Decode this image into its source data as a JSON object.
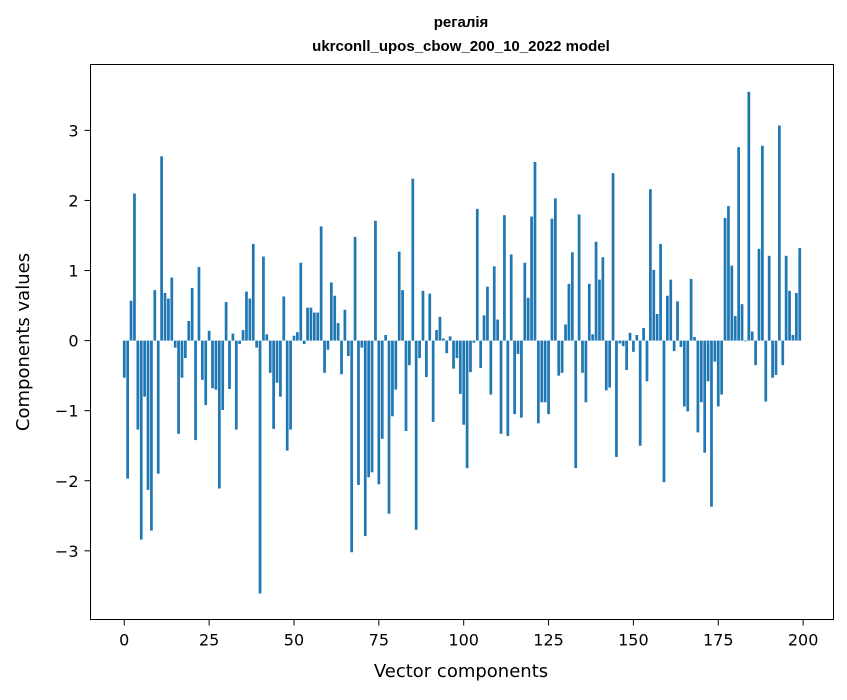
{
  "chart_data": {
    "type": "bar",
    "title_line1": "регалія",
    "title_line2": "ukrconll_upos_cbow_200_10_2022 model",
    "xlabel": "Vector components",
    "ylabel": "Components values",
    "xlim": [
      -9.95,
      208.95
    ],
    "ylim": [
      -3.98,
      3.94
    ],
    "xticks": [
      0,
      25,
      50,
      75,
      100,
      125,
      150,
      175,
      200
    ],
    "yticks": [
      -3,
      -2,
      -1,
      0,
      1,
      2,
      3
    ],
    "ytick_labels": [
      "−3",
      "−2",
      "−1",
      "0",
      "1",
      "2",
      "3"
    ],
    "bar_color": "#1f77b4",
    "grid": false,
    "legend": "none",
    "x": [
      0,
      1,
      2,
      3,
      4,
      5,
      6,
      7,
      8,
      9,
      10,
      11,
      12,
      13,
      14,
      15,
      16,
      17,
      18,
      19,
      20,
      21,
      22,
      23,
      24,
      25,
      26,
      27,
      28,
      29,
      30,
      31,
      32,
      33,
      34,
      35,
      36,
      37,
      38,
      39,
      40,
      41,
      42,
      43,
      44,
      45,
      46,
      47,
      48,
      49,
      50,
      51,
      52,
      53,
      54,
      55,
      56,
      57,
      58,
      59,
      60,
      61,
      62,
      63,
      64,
      65,
      66,
      67,
      68,
      69,
      70,
      71,
      72,
      73,
      74,
      75,
      76,
      77,
      78,
      79,
      80,
      81,
      82,
      83,
      84,
      85,
      86,
      87,
      88,
      89,
      90,
      91,
      92,
      93,
      94,
      95,
      96,
      97,
      98,
      99,
      100,
      101,
      102,
      103,
      104,
      105,
      106,
      107,
      108,
      109,
      110,
      111,
      112,
      113,
      114,
      115,
      116,
      117,
      118,
      119,
      120,
      121,
      122,
      123,
      124,
      125,
      126,
      127,
      128,
      129,
      130,
      131,
      132,
      133,
      134,
      135,
      136,
      137,
      138,
      139,
      140,
      141,
      142,
      143,
      144,
      145,
      146,
      147,
      148,
      149,
      150,
      151,
      152,
      153,
      154,
      155,
      156,
      157,
      158,
      159,
      160,
      161,
      162,
      163,
      164,
      165,
      166,
      167,
      168,
      169,
      170,
      171,
      172,
      173,
      174,
      175,
      176,
      177,
      178,
      179,
      180,
      181,
      182,
      183,
      184,
      185,
      186,
      187,
      188,
      189,
      190,
      191,
      192,
      193,
      194,
      195,
      196,
      197,
      198,
      199
    ],
    "values": [
      -0.53,
      -1.97,
      0.57,
      2.1,
      -1.27,
      -2.84,
      -0.8,
      -2.13,
      -2.71,
      0.72,
      -1.9,
      2.63,
      0.68,
      0.6,
      0.9,
      -0.1,
      -1.33,
      -0.53,
      -0.25,
      0.28,
      0.75,
      -1.42,
      1.05,
      -0.56,
      -0.92,
      0.14,
      -0.68,
      -0.7,
      -2.11,
      -0.99,
      0.55,
      -0.69,
      0.1,
      -1.27,
      -0.05,
      0.15,
      0.7,
      0.6,
      1.38,
      -0.1,
      -3.61,
      1.2,
      0.09,
      -0.46,
      -1.26,
      -0.6,
      -0.8,
      0.63,
      -1.57,
      -1.27,
      0.07,
      0.12,
      1.11,
      -0.05,
      0.47,
      0.47,
      0.4,
      0.4,
      1.63,
      -0.46,
      -0.13,
      0.83,
      0.64,
      0.25,
      -0.48,
      0.44,
      -0.22,
      -3.02,
      1.48,
      -2.06,
      -0.1,
      -2.79,
      -1.95,
      -1.88,
      1.71,
      -2.05,
      -1.4,
      0.08,
      -2.47,
      -1.08,
      -0.7,
      1.27,
      0.72,
      -1.29,
      -0.35,
      2.31,
      -2.7,
      -0.25,
      0.71,
      -0.52,
      0.67,
      -1.16,
      0.15,
      0.34,
      0.03,
      -0.18,
      0.06,
      -0.4,
      -0.25,
      -0.76,
      -1.2,
      -1.82,
      -0.45,
      -0.03,
      1.88,
      -0.39,
      0.36,
      0.77,
      -0.77,
      1.06,
      0.3,
      -1.33,
      1.79,
      -1.36,
      1.23,
      -1.05,
      -0.19,
      -1.1,
      1.11,
      0.61,
      1.77,
      2.55,
      -1.18,
      -0.88,
      -0.88,
      -1.05,
      1.74,
      2.03,
      -0.5,
      -0.46,
      0.23,
      0.81,
      1.26,
      -1.82,
      1.8,
      -0.46,
      -0.88,
      0.81,
      0.09,
      1.41,
      0.87,
      1.19,
      -0.71,
      -0.67,
      2.39,
      -1.66,
      -0.04,
      -0.08,
      -0.42,
      0.11,
      -0.16,
      0.08,
      -1.5,
      0.18,
      -0.58,
      2.16,
      1.01,
      0.38,
      1.38,
      -2.02,
      0.64,
      0.87,
      -0.15,
      0.56,
      -0.09,
      -0.94,
      -1.01,
      0.88,
      0.05,
      -1.31,
      -0.88,
      -1.6,
      -0.58,
      -2.37,
      -0.3,
      -0.94,
      -0.77,
      1.75,
      1.92,
      1.07,
      0.35,
      2.76,
      0.52,
      -0.01,
      3.55,
      0.13,
      -0.35,
      1.31,
      2.78,
      -0.87,
      1.21,
      -0.53,
      -0.49,
      3.07,
      -0.35,
      1.21,
      0.71,
      0.08,
      0.68,
      1.32
    ]
  }
}
